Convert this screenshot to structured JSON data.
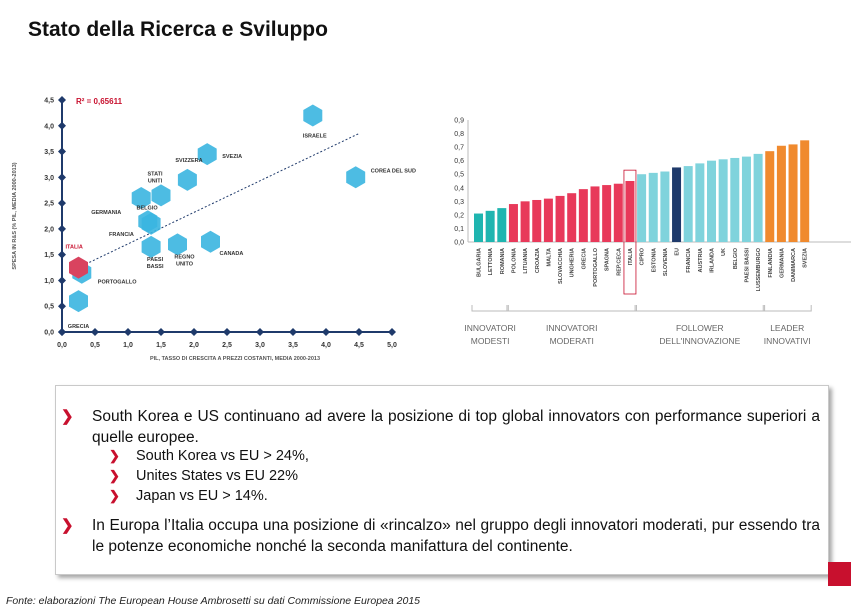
{
  "title": "Stato della Ricerca e Sviluppo",
  "chart_data": [
    {
      "type": "scatter",
      "annotation": "R² = 0,65611",
      "xlabel": "PIL, TASSO DI CRESCITA A PREZZI COSTANTI, MEDIA 2000-2013",
      "ylabel": "SPESA IN R&S (% PIL, MEDIA 2000-2013)",
      "xlim": [
        0,
        5
      ],
      "ylim": [
        0,
        4.5
      ],
      "x_ticks": [
        "0,0",
        "0,5",
        "1,0",
        "1,5",
        "2,0",
        "2,5",
        "3,0",
        "3,5",
        "4,0",
        "4,5",
        "5,0"
      ],
      "y_ticks": [
        "0,0",
        "0,5",
        "1,0",
        "1,5",
        "2,0",
        "2,5",
        "3,0",
        "3,5",
        "4,0",
        "4,5"
      ],
      "trendline": [
        [
          0.25,
          1.25
        ],
        [
          4.5,
          3.85
        ]
      ],
      "points": [
        {
          "label": "ISRAELE",
          "x": 3.8,
          "y": 4.2
        },
        {
          "label": "SVEZIA",
          "x": 2.2,
          "y": 3.45
        },
        {
          "label": "COREA DEL SUD",
          "x": 4.45,
          "y": 3.0
        },
        {
          "label": "SVIZZERA",
          "x": 1.9,
          "y": 2.95
        },
        {
          "label": "STATI UNITI",
          "x": 1.5,
          "y": 2.65
        },
        {
          "label": "GERMANIA",
          "x": 1.2,
          "y": 2.6
        },
        {
          "label": "BELGIO",
          "x": 1.35,
          "y": 2.1
        },
        {
          "label": "FRANCIA",
          "x": 1.3,
          "y": 2.15
        },
        {
          "label": "CANADA",
          "x": 2.25,
          "y": 1.75
        },
        {
          "label": "REGNO UNITO",
          "x": 1.75,
          "y": 1.7
        },
        {
          "label": "PAESI BASSI",
          "x": 1.35,
          "y": 1.65
        },
        {
          "label": "PORTOGALLO",
          "x": 0.3,
          "y": 1.15
        },
        {
          "label": "ITALIA",
          "x": 0.25,
          "y": 1.25
        },
        {
          "label": "GRECIA",
          "x": 0.25,
          "y": 0.6
        }
      ]
    },
    {
      "type": "bar",
      "y_ticks": [
        "0,0",
        "0,1",
        "0,2",
        "0,3",
        "0,4",
        "0,5",
        "0,6",
        "0,7",
        "0,8",
        "0,9"
      ],
      "ylim": [
        0,
        0.9
      ],
      "categories": [
        "BULGARIA",
        "LETTONIA",
        "ROMANIA",
        "POLONIA",
        "LITUANIA",
        "CROAZIA",
        "MALTA",
        "SLOVACCHIA",
        "UNGHERIA",
        "GRECIA",
        "PORTOGALLO",
        "SPAGNA",
        "REP.CECA",
        "ITALIA",
        "CIPRO",
        "ESTONIA",
        "SLOVENIA",
        "EU",
        "FRANCIA",
        "AUSTRIA",
        "IRLANDA",
        "UK",
        "BELGIO",
        "PAESI BASSI",
        "LUSSEMBURGO",
        "FINLANDIA",
        "GERMANIA",
        "DANIMARCA",
        "SVEZIA"
      ],
      "values": [
        0.21,
        0.23,
        0.25,
        0.28,
        0.3,
        0.31,
        0.32,
        0.34,
        0.36,
        0.39,
        0.41,
        0.42,
        0.43,
        0.45,
        0.5,
        0.51,
        0.52,
        0.55,
        0.56,
        0.58,
        0.6,
        0.61,
        0.62,
        0.63,
        0.65,
        0.67,
        0.71,
        0.72,
        0.75
      ],
      "groups": [
        {
          "name": "INNOVATORI MODESTI",
          "line1": "INNOVATORI",
          "line2": "MODESTI",
          "color": "#1fb5b0",
          "from": 0,
          "to": 2
        },
        {
          "name": "INNOVATORI MODERATI",
          "line1": "INNOVATORI",
          "line2": "MODERATI",
          "color": "#e8395a",
          "from": 3,
          "to": 13
        },
        {
          "name": "FOLLOWER DELL'INNOVAZIONE",
          "line1": "FOLLOWER",
          "line2": "DELL'INNOVAZIONE",
          "color": "#7fd3dc",
          "from": 14,
          "to": 24
        },
        {
          "name": "LEADER INNOVATIVI",
          "line1": "LEADER",
          "line2": "INNOVATIVI",
          "color": "#f08a2e",
          "from": 25,
          "to": 28
        }
      ],
      "highlight": "ITALIA",
      "eu_color": "#1f3a6b"
    }
  ],
  "box": {
    "p1": "South Korea e US continuano ad avere la posizione di top global innovators con performance superiori a quelle europee.",
    "subs": [
      "South Korea vs EU > 24%,",
      "Unites States vs EU 22%",
      "Japan vs EU > 14%."
    ],
    "p2": "In Europa l’Italia occupa una posizione di «rincalzo» nel gruppo degli innovatori moderati, pur essendo tra le potenze economiche nonché la seconda manifattura del continente."
  },
  "source": "Fonte: elaborazioni The European House Ambrosetti su dati Commissione Europea 2015",
  "colors": {
    "accent": "#c8102e",
    "hex": "#3ab5e0",
    "hex_highlight": "#d9435f",
    "axis": "#1f3a6b"
  }
}
